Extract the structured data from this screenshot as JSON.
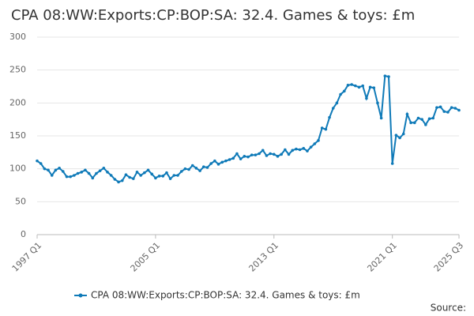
{
  "chart_data": {
    "type": "line",
    "title": "CPA 08:WW:Exports:CP:BOP:SA: 32.4. Games & toys: £m",
    "categories": [
      "1997 Q1",
      null,
      null,
      null,
      null,
      null,
      null,
      null,
      null,
      null,
      null,
      null,
      null,
      null,
      null,
      null,
      null,
      null,
      null,
      null,
      null,
      null,
      null,
      null,
      null,
      null,
      null,
      null,
      null,
      null,
      null,
      null,
      "2005 Q1",
      null,
      null,
      null,
      null,
      null,
      null,
      null,
      null,
      null,
      null,
      null,
      null,
      null,
      null,
      null,
      null,
      null,
      null,
      null,
      null,
      null,
      null,
      null,
      null,
      null,
      null,
      null,
      null,
      null,
      null,
      null,
      "2013 Q1",
      null,
      null,
      null,
      null,
      null,
      null,
      null,
      null,
      null,
      null,
      null,
      null,
      null,
      null,
      null,
      null,
      null,
      null,
      null,
      null,
      null,
      null,
      null,
      null,
      null,
      null,
      null,
      null,
      null,
      null,
      null,
      "2021 Q1",
      null,
      null,
      null,
      null,
      null,
      null,
      null,
      null,
      null,
      null,
      null,
      null,
      null,
      null,
      null,
      null,
      null,
      "2025 Q3"
    ],
    "series": [
      {
        "name": "CPA 08:WW:Exports:CP:BOP:SA: 32.4. Games & toys: £m",
        "color": "#0f7ab8",
        "values": [
          112,
          108,
          100,
          98,
          90,
          98,
          101,
          96,
          88,
          88,
          90,
          93,
          95,
          98,
          93,
          86,
          93,
          97,
          101,
          95,
          90,
          84,
          80,
          82,
          91,
          87,
          85,
          95,
          90,
          94,
          98,
          92,
          86,
          89,
          89,
          94,
          85,
          90,
          90,
          96,
          100,
          99,
          105,
          101,
          97,
          103,
          102,
          108,
          112,
          107,
          110,
          112,
          114,
          116,
          123,
          115,
          119,
          118,
          121,
          121,
          123,
          128,
          120,
          123,
          122,
          119,
          122,
          129,
          122,
          128,
          130,
          129,
          131,
          127,
          133,
          138,
          143,
          162,
          160,
          178,
          192,
          200,
          213,
          218,
          227,
          228,
          226,
          224,
          226,
          207,
          224,
          223,
          200,
          177,
          241,
          240,
          108,
          151,
          147,
          153,
          183,
          170,
          170,
          177,
          175,
          167,
          176,
          177,
          193,
          194,
          187,
          186,
          193,
          192,
          189
        ]
      }
    ],
    "ylim": [
      0,
      300
    ],
    "yticks": [
      0,
      50,
      100,
      150,
      200,
      250,
      300
    ],
    "grid": true,
    "legend": "bottom",
    "source": "Source:"
  }
}
